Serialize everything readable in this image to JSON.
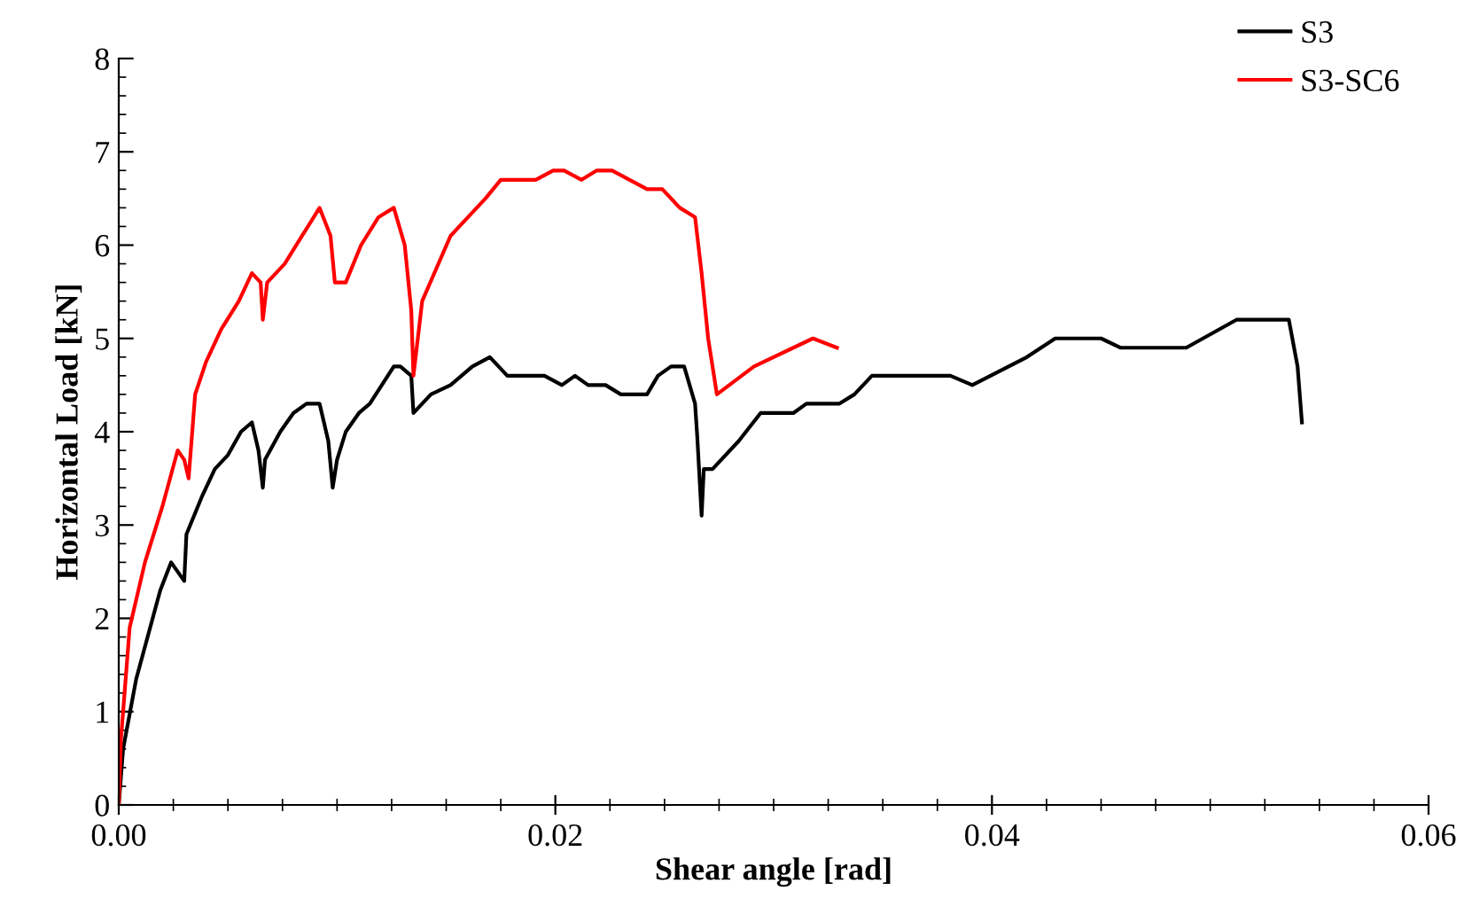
{
  "chart_data": {
    "type": "line",
    "xlabel": "Shear angle [rad]",
    "ylabel": "Horizontal Load [kN]",
    "xlim": [
      0,
      0.06
    ],
    "ylim": [
      0,
      8
    ],
    "xticks": [
      {
        "value": 0,
        "label": "0.00"
      },
      {
        "value": 0.02,
        "label": "0.02"
      },
      {
        "value": 0.04,
        "label": "0.04"
      },
      {
        "value": 0.06,
        "label": "0.06"
      }
    ],
    "yticks": [
      0,
      1,
      2,
      3,
      4,
      5,
      6,
      7,
      8
    ],
    "grid": false,
    "legend": "top right",
    "marker": "none",
    "line_style": "solid",
    "series": [
      {
        "name": "S3",
        "color": "#000000",
        "x": [
          0,
          0.0002,
          0.0008,
          0.0019,
          0.0024,
          0.003,
          0.0031,
          0.0038,
          0.0044,
          0.005,
          0.0056,
          0.0061,
          0.0064,
          0.0066,
          0.0067,
          0.0074,
          0.008,
          0.0086,
          0.0092,
          0.0096,
          0.0098,
          0.01,
          0.0104,
          0.011,
          0.0115,
          0.0126,
          0.0129,
          0.0134,
          0.0135,
          0.0143,
          0.0152,
          0.0162,
          0.017,
          0.0178,
          0.0195,
          0.0203,
          0.0209,
          0.0215,
          0.0223,
          0.023,
          0.0242,
          0.0247,
          0.0253,
          0.0259,
          0.0264,
          0.0265,
          0.0267,
          0.0268,
          0.0272,
          0.0284,
          0.0294,
          0.0309,
          0.0315,
          0.033,
          0.0337,
          0.0345,
          0.0381,
          0.0391,
          0.0416,
          0.0429,
          0.045,
          0.0459,
          0.0489,
          0.0512,
          0.0536,
          0.054,
          0.0542
        ],
        "values": [
          0,
          0.6,
          1.35,
          2.3,
          2.6,
          2.4,
          2.9,
          3.3,
          3.6,
          3.75,
          4.0,
          4.1,
          3.8,
          3.4,
          3.7,
          4.0,
          4.2,
          4.3,
          4.3,
          3.9,
          3.4,
          3.7,
          4.0,
          4.2,
          4.3,
          4.7,
          4.7,
          4.6,
          4.2,
          4.4,
          4.5,
          4.7,
          4.8,
          4.6,
          4.6,
          4.5,
          4.6,
          4.5,
          4.5,
          4.4,
          4.4,
          4.6,
          4.7,
          4.7,
          4.3,
          3.95,
          3.1,
          3.6,
          3.6,
          3.9,
          4.2,
          4.2,
          4.3,
          4.3,
          4.4,
          4.6,
          4.6,
          4.5,
          4.8,
          5.0,
          5.0,
          4.9,
          4.9,
          5.2,
          5.2,
          4.7,
          4.1
        ]
      },
      {
        "name": "S3-SC6",
        "color": "#ff0000",
        "x": [
          0,
          0.0001,
          0.0005,
          0.0012,
          0.002,
          0.0027,
          0.003,
          0.0032,
          0.0035,
          0.004,
          0.0047,
          0.0055,
          0.0061,
          0.0065,
          0.0066,
          0.0068,
          0.0076,
          0.0084,
          0.0092,
          0.0097,
          0.0099,
          0.0104,
          0.0111,
          0.0119,
          0.0126,
          0.0131,
          0.0134,
          0.0135,
          0.0139,
          0.0152,
          0.0168,
          0.0175,
          0.0191,
          0.0199,
          0.0204,
          0.0212,
          0.0219,
          0.0226,
          0.0242,
          0.0249,
          0.0257,
          0.0264,
          0.0267,
          0.027,
          0.0274,
          0.0291,
          0.0318,
          0.0329
        ],
        "values": [
          0,
          0.7,
          1.9,
          2.6,
          3.2,
          3.8,
          3.7,
          3.5,
          4.4,
          4.75,
          5.1,
          5.4,
          5.7,
          5.6,
          5.2,
          5.6,
          5.8,
          6.1,
          6.4,
          6.1,
          5.6,
          5.6,
          6.0,
          6.3,
          6.4,
          6.0,
          5.3,
          4.6,
          5.4,
          6.1,
          6.5,
          6.7,
          6.7,
          6.8,
          6.8,
          6.7,
          6.8,
          6.8,
          6.6,
          6.6,
          6.4,
          6.3,
          5.7,
          5.0,
          4.4,
          4.7,
          5.0,
          4.9
        ]
      }
    ]
  }
}
